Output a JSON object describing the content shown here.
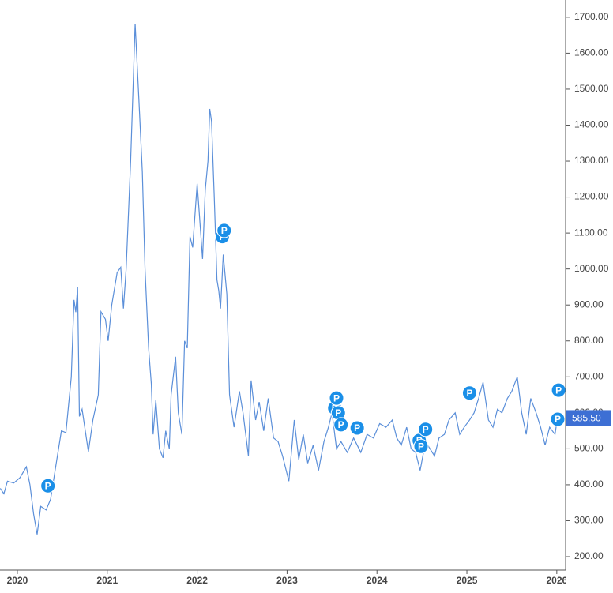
{
  "chart_data": {
    "type": "line",
    "x": [
      2019.81,
      2019.85,
      2019.89,
      2019.96,
      2020.03,
      2020.1,
      2020.14,
      2020.18,
      2020.22,
      2020.26,
      2020.32,
      2020.37,
      2020.42,
      2020.49,
      2020.54,
      2020.6,
      2020.63,
      2020.65,
      2020.67,
      2020.69,
      2020.72,
      2020.79,
      2020.84,
      2020.9,
      2020.93,
      2020.98,
      2021.01,
      2021.05,
      2021.11,
      2021.15,
      2021.18,
      2021.21,
      2021.26,
      2021.31,
      2021.35,
      2021.39,
      2021.42,
      2021.46,
      2021.49,
      2021.51,
      2021.54,
      2021.58,
      2021.62,
      2021.65,
      2021.69,
      2021.71,
      2021.76,
      2021.79,
      2021.83,
      2021.86,
      2021.89,
      2021.92,
      2021.95,
      2022.0,
      2022.06,
      2022.09,
      2022.12,
      2022.14,
      2022.16,
      2022.19,
      2022.22,
      2022.24,
      2022.26,
      2022.29,
      2022.33,
      2022.36,
      2022.41,
      2022.47,
      2022.51,
      2022.57,
      2022.6,
      2022.65,
      2022.69,
      2022.74,
      2022.79,
      2022.85,
      2022.9,
      2022.95,
      2023.02,
      2023.08,
      2023.13,
      2023.18,
      2023.23,
      2023.29,
      2023.35,
      2023.41,
      2023.46,
      2023.5,
      2023.55,
      2023.6,
      2023.67,
      2023.74,
      2023.82,
      2023.89,
      2023.96,
      2024.03,
      2024.1,
      2024.17,
      2024.22,
      2024.27,
      2024.33,
      2024.38,
      2024.43,
      2024.48,
      2024.54,
      2024.59,
      2024.64,
      2024.69,
      2024.75,
      2024.8,
      2024.87,
      2024.92,
      2024.97,
      2025.03,
      2025.08,
      2025.13,
      2025.18,
      2025.24,
      2025.29,
      2025.34,
      2025.39,
      2025.45,
      2025.5,
      2025.56,
      2025.61,
      2025.66,
      2025.71,
      2025.77,
      2025.82,
      2025.87,
      2025.92,
      2025.98,
      2026.01,
      2026.05
    ],
    "series": [
      {
        "color": "#5b8fd9",
        "values": [
          390,
          375,
          410,
          405,
          420,
          450,
          400,
          320,
          262,
          340,
          330,
          360,
          440,
          550,
          545,
          700,
          914,
          880,
          950,
          590,
          610,
          492,
          580,
          650,
          881,
          860,
          800,
          900,
          990,
          1005,
          890,
          1000,
          1300,
          1682,
          1480,
          1270,
          1000,
          780,
          680,
          540,
          635,
          500,
          475,
          550,
          500,
          650,
          756,
          600,
          540,
          800,
          780,
          1090,
          1060,
          1237,
          1028,
          1220,
          1300,
          1445,
          1410,
          1200,
          970,
          940,
          890,
          1040,
          930,
          650,
          560,
          660,
          600,
          480,
          690,
          580,
          630,
          550,
          640,
          530,
          520,
          480,
          410,
          580,
          470,
          540,
          460,
          510,
          440,
          520,
          560,
          600,
          500,
          520,
          490,
          530,
          490,
          540,
          530,
          570,
          560,
          580,
          530,
          510,
          560,
          500,
          490,
          440,
          520,
          500,
          480,
          530,
          540,
          580,
          600,
          540,
          560,
          580,
          600,
          640,
          685,
          580,
          560,
          610,
          600,
          640,
          660,
          700,
          600,
          540,
          640,
          600,
          560,
          510,
          560,
          540,
          590,
          585.5
        ]
      }
    ],
    "xlim": [
      2019.807,
      2026.098
    ],
    "xticks": [
      2020,
      2021,
      2022,
      2023,
      2024,
      2025,
      2026
    ],
    "ylim": [
      162.7,
      1748
    ],
    "yticks": [
      {
        "value": 200,
        "label": "200.00"
      },
      {
        "value": 300,
        "label": "300.00"
      },
      {
        "value": 400,
        "label": "400.00"
      },
      {
        "value": 500,
        "label": "500.00"
      },
      {
        "value": 600,
        "label": "600.00"
      },
      {
        "value": 700,
        "label": "700.00"
      },
      {
        "value": 800,
        "label": "800.00"
      },
      {
        "value": 900,
        "label": "900.00"
      },
      {
        "value": 1000,
        "label": "1000.00"
      },
      {
        "value": 1100,
        "label": "1100.00"
      },
      {
        "value": 1200,
        "label": "1200.00"
      },
      {
        "value": 1300,
        "label": "1300.00"
      },
      {
        "value": 1400,
        "label": "1400.00"
      },
      {
        "value": 1500,
        "label": "1500.00"
      },
      {
        "value": 1600,
        "label": "1600.00"
      },
      {
        "value": 1700,
        "label": "1700.00"
      }
    ],
    "last_value": 585.5,
    "last_value_label": "585.50",
    "last_value_color": "#3d6fd4",
    "marker_color": "#1a8fe8",
    "events": [
      {
        "x": 2020.34,
        "y": 397,
        "label": "P"
      },
      {
        "x": 2022.28,
        "y": 1090,
        "label": "P"
      },
      {
        "x": 2022.3,
        "y": 1107,
        "label": "P"
      },
      {
        "x": 2023.53,
        "y": 613,
        "label": "P"
      },
      {
        "x": 2023.57,
        "y": 600,
        "label": "P"
      },
      {
        "x": 2023.55,
        "y": 641,
        "label": "P"
      },
      {
        "x": 2023.6,
        "y": 567,
        "label": "P"
      },
      {
        "x": 2023.78,
        "y": 558,
        "label": "P"
      },
      {
        "x": 2024.47,
        "y": 523,
        "label": "P"
      },
      {
        "x": 2024.49,
        "y": 507,
        "label": "P"
      },
      {
        "x": 2024.54,
        "y": 554,
        "label": "P"
      },
      {
        "x": 2025.03,
        "y": 655,
        "label": "P"
      },
      {
        "x": 2026.02,
        "y": 663,
        "label": "P"
      },
      {
        "x": 2026.01,
        "y": 582,
        "label": "P"
      }
    ]
  }
}
